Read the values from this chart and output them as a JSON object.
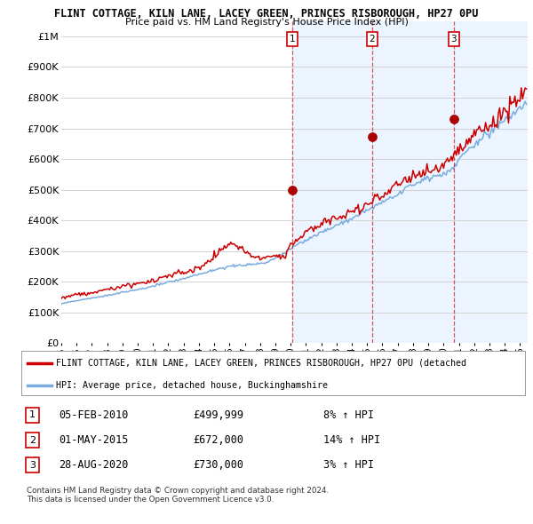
{
  "title1": "FLINT COTTAGE, KILN LANE, LACEY GREEN, PRINCES RISBOROUGH, HP27 0PU",
  "title2": "Price paid vs. HM Land Registry's House Price Index (HPI)",
  "red_label": "FLINT COTTAGE, KILN LANE, LACEY GREEN, PRINCES RISBOROUGH, HP27 0PU (detached",
  "blue_label": "HPI: Average price, detached house, Buckinghamshire",
  "footnote1": "Contains HM Land Registry data © Crown copyright and database right 2024.",
  "footnote2": "This data is licensed under the Open Government Licence v3.0.",
  "sales": [
    {
      "num": 1,
      "date": "05-FEB-2010",
      "price": "£499,999",
      "pct": "8%",
      "dir": "↑",
      "ref": "HPI",
      "year": 2010.09
    },
    {
      "num": 2,
      "date": "01-MAY-2015",
      "price": "£672,000",
      "pct": "14%",
      "dir": "↑",
      "ref": "HPI",
      "year": 2015.33
    },
    {
      "num": 3,
      "date": "28-AUG-2020",
      "price": "£730,000",
      "pct": "3%",
      "dir": "↑",
      "ref": "HPI",
      "year": 2020.67
    }
  ],
  "sale_prices": [
    499999,
    672000,
    730000
  ],
  "ylim": [
    0,
    1050000
  ],
  "yticks": [
    0,
    100000,
    200000,
    300000,
    400000,
    500000,
    600000,
    700000,
    800000,
    900000,
    1000000
  ],
  "ytick_labels": [
    "£0",
    "£100K",
    "£200K",
    "£300K",
    "£400K",
    "£500K",
    "£600K",
    "£700K",
    "£800K",
    "£900K",
    "£1M"
  ],
  "xstart": 1995.0,
  "xend": 2025.5,
  "red_color": "#cc0000",
  "blue_color": "#7aadde",
  "blue_fill_color": "#ddeeff",
  "grid_color": "#cccccc",
  "bg_color": "#ffffff",
  "sale_marker_color": "#aa0000",
  "dashed_line_color": "#cc0000",
  "dashed_alpha": 0.65
}
